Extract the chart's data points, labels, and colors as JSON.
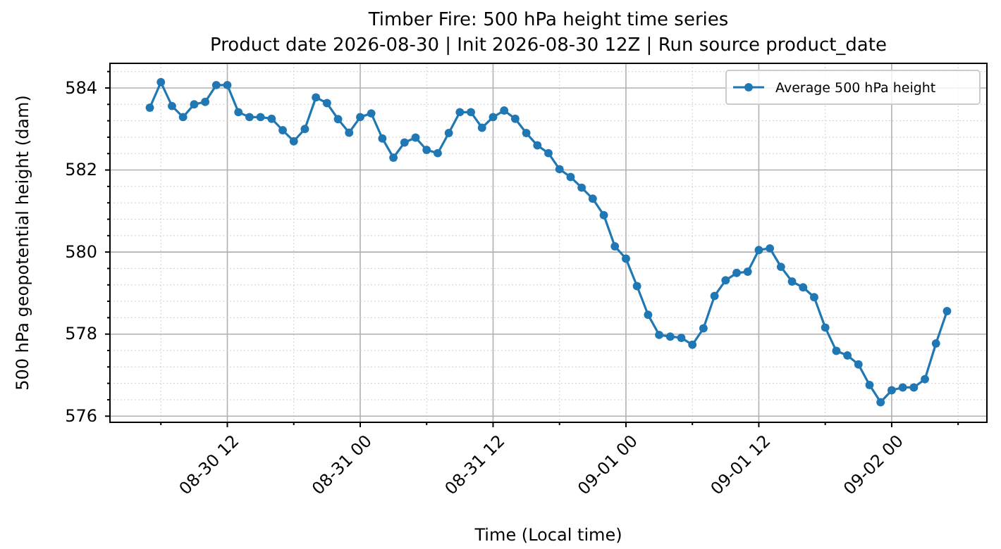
{
  "chart_data": {
    "type": "line",
    "title": "Timber Fire: 500 hPa height time series",
    "subtitle": "Product date 2026-08-30 | Init 2026-08-30 12Z | Run source product_date",
    "xlabel": "Time (Local time)",
    "ylabel": "500 hPa geopotential height (dam)",
    "x": [
      "2026-08-30T05:00",
      "2026-08-30T06:00",
      "2026-08-30T07:00",
      "2026-08-30T08:00",
      "2026-08-30T09:00",
      "2026-08-30T10:00",
      "2026-08-30T11:00",
      "2026-08-30T12:00",
      "2026-08-30T13:00",
      "2026-08-30T14:00",
      "2026-08-30T15:00",
      "2026-08-30T16:00",
      "2026-08-30T17:00",
      "2026-08-30T18:00",
      "2026-08-30T19:00",
      "2026-08-30T20:00",
      "2026-08-30T21:00",
      "2026-08-30T22:00",
      "2026-08-30T23:00",
      "2026-08-31T00:00",
      "2026-08-31T01:00",
      "2026-08-31T02:00",
      "2026-08-31T03:00",
      "2026-08-31T04:00",
      "2026-08-31T05:00",
      "2026-08-31T06:00",
      "2026-08-31T07:00",
      "2026-08-31T08:00",
      "2026-08-31T09:00",
      "2026-08-31T10:00",
      "2026-08-31T11:00",
      "2026-08-31T12:00",
      "2026-08-31T13:00",
      "2026-08-31T14:00",
      "2026-08-31T15:00",
      "2026-08-31T16:00",
      "2026-08-31T17:00",
      "2026-08-31T18:00",
      "2026-08-31T19:00",
      "2026-08-31T20:00",
      "2026-08-31T21:00",
      "2026-08-31T22:00",
      "2026-08-31T23:00",
      "2026-09-01T00:00",
      "2026-09-01T01:00",
      "2026-09-01T02:00",
      "2026-09-01T03:00",
      "2026-09-01T04:00",
      "2026-09-01T05:00",
      "2026-09-01T06:00",
      "2026-09-01T07:00",
      "2026-09-01T08:00",
      "2026-09-01T09:00",
      "2026-09-01T10:00",
      "2026-09-01T11:00",
      "2026-09-01T12:00",
      "2026-09-01T13:00",
      "2026-09-01T14:00",
      "2026-09-01T15:00",
      "2026-09-01T16:00",
      "2026-09-01T17:00",
      "2026-09-01T18:00",
      "2026-09-01T19:00",
      "2026-09-01T20:00",
      "2026-09-01T21:00",
      "2026-09-01T22:00",
      "2026-09-01T23:00",
      "2026-09-02T00:00",
      "2026-09-02T01:00",
      "2026-09-02T02:00",
      "2026-09-02T03:00",
      "2026-09-02T04:00",
      "2026-09-02T05:00"
    ],
    "series": [
      {
        "name": "Average 500 hPa height",
        "color": "#1f77b4",
        "values": [
          583.52,
          584.14,
          583.56,
          583.29,
          583.6,
          583.66,
          584.07,
          584.07,
          583.41,
          583.29,
          583.29,
          583.25,
          582.97,
          582.7,
          583.0,
          583.77,
          583.63,
          583.24,
          582.91,
          583.29,
          583.38,
          582.77,
          582.3,
          582.67,
          582.79,
          582.49,
          582.41,
          582.9,
          583.41,
          583.41,
          583.03,
          583.29,
          583.45,
          583.25,
          582.9,
          582.6,
          582.41,
          582.02,
          581.83,
          581.57,
          581.3,
          580.9,
          580.14,
          579.84,
          579.17,
          578.47,
          577.98,
          577.94,
          577.91,
          577.74,
          578.14,
          578.93,
          579.31,
          579.49,
          579.52,
          580.05,
          580.09,
          579.64,
          579.28,
          579.14,
          578.9,
          578.16,
          577.59,
          577.48,
          577.26,
          576.76,
          576.34,
          576.63,
          576.7,
          576.7,
          576.9,
          577.77,
          578.56
        ]
      }
    ],
    "xlim": [
      "2026-08-30T01:24",
      "2026-09-02T08:36"
    ],
    "xticks": [
      {
        "value": "2026-08-30T06:00",
        "label": null
      },
      {
        "value": "2026-08-30T12:00",
        "label": "08-30 12"
      },
      {
        "value": "2026-08-30T18:00",
        "label": null
      },
      {
        "value": "2026-08-31T00:00",
        "label": "08-31 00"
      },
      {
        "value": "2026-08-31T06:00",
        "label": null
      },
      {
        "value": "2026-08-31T12:00",
        "label": "08-31 12"
      },
      {
        "value": "2026-08-31T18:00",
        "label": null
      },
      {
        "value": "2026-09-01T00:00",
        "label": "09-01 00"
      },
      {
        "value": "2026-09-01T06:00",
        "label": null
      },
      {
        "value": "2026-09-01T12:00",
        "label": "09-01 12"
      },
      {
        "value": "2026-09-01T18:00",
        "label": null
      },
      {
        "value": "2026-09-02T00:00",
        "label": "09-02 00"
      },
      {
        "value": "2026-09-02T06:00",
        "label": null
      }
    ],
    "ylim": [
      575.85,
      584.6
    ],
    "yticks": [
      576,
      {
        "value": 576.4,
        "label": null
      },
      {
        "value": 576.8,
        "label": null
      },
      {
        "value": 577.2,
        "label": null
      },
      {
        "value": 577.6,
        "label": null
      },
      578,
      {
        "value": 578.4,
        "label": null
      },
      {
        "value": 578.8,
        "label": null
      },
      {
        "value": 579.2,
        "label": null
      },
      {
        "value": 579.6,
        "label": null
      },
      580,
      {
        "value": 580.4,
        "label": null
      },
      {
        "value": 580.8,
        "label": null
      },
      {
        "value": 581.2,
        "label": null
      },
      {
        "value": 581.6,
        "label": null
      },
      582,
      {
        "value": 582.4,
        "label": null
      },
      {
        "value": 582.8,
        "label": null
      },
      {
        "value": 583.2,
        "label": null
      },
      {
        "value": 583.6,
        "label": null
      },
      584,
      {
        "value": 584.4,
        "label": null
      }
    ],
    "grid": true,
    "legend": "top right",
    "marker": "circle",
    "line_style": "solid"
  }
}
